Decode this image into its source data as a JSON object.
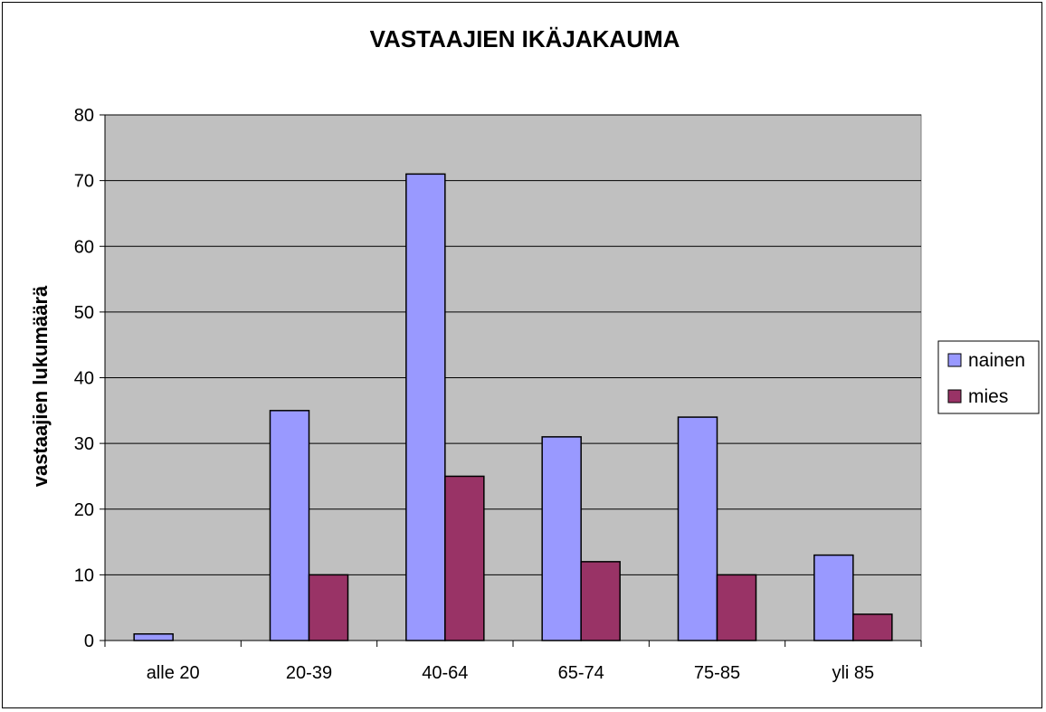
{
  "chart_data": {
    "type": "bar",
    "title": "VASTAAJIEN IKÄJAKAUMA",
    "xlabel": "",
    "ylabel": "vastaajien lukumäärä",
    "categories": [
      "alle 20",
      "20-39",
      "40-64",
      "65-74",
      "75-85",
      "yli 85"
    ],
    "series": [
      {
        "name": "nainen",
        "color": "#9999ff",
        "values": [
          1,
          35,
          71,
          31,
          34,
          13
        ]
      },
      {
        "name": "mies",
        "color": "#993366",
        "values": [
          0,
          10,
          25,
          12,
          10,
          4
        ]
      }
    ],
    "ylim": [
      0,
      80
    ],
    "yticks": [
      "0",
      "10",
      "20",
      "30",
      "40",
      "50",
      "60",
      "70",
      "80"
    ],
    "grid": true,
    "plot_background": "#c0c0c0",
    "legend_position": "right"
  }
}
